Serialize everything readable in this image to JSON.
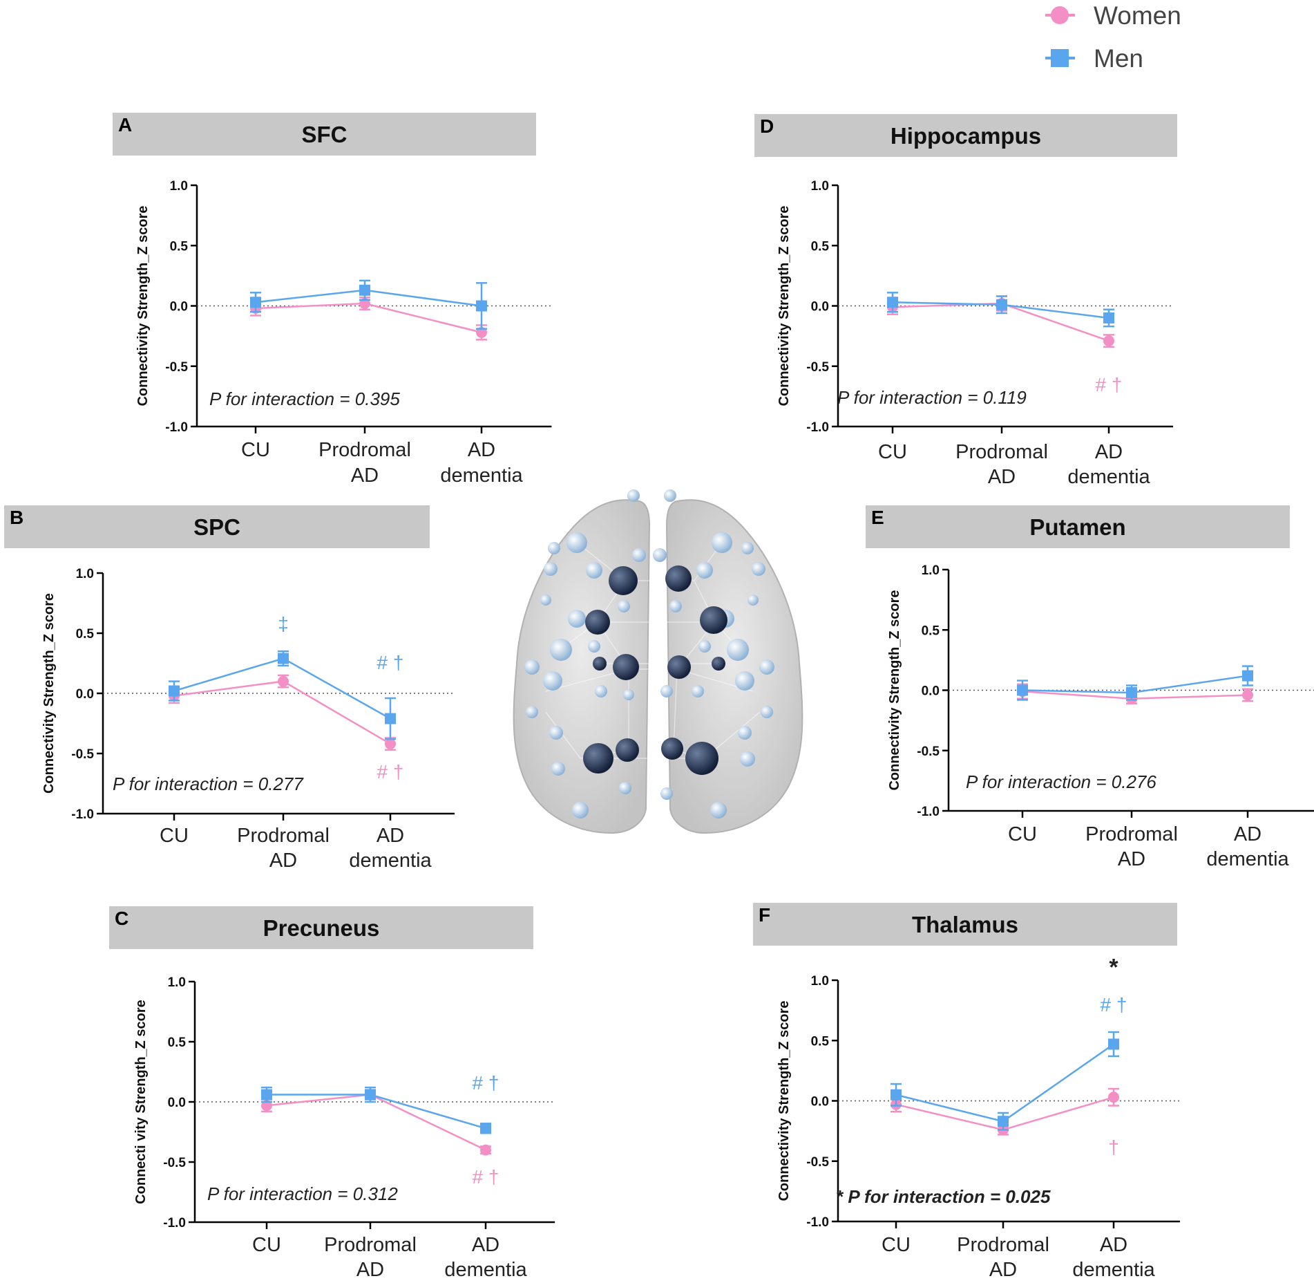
{
  "legend": {
    "position": "top-right",
    "entries": [
      {
        "label": "Women",
        "marker": "circle",
        "color": "#f48fc6"
      },
      {
        "label": "Men",
        "marker": "square",
        "color": "#5aa6ee"
      }
    ]
  },
  "colors": {
    "women": "#f48fc6",
    "men": "#5aa6ee",
    "header_bg": "#c8c8c8",
    "axis": "#000000",
    "star": "#222222"
  },
  "brain_image": {
    "icon": "brain-connectome-icon"
  },
  "chart_data": [
    {
      "panel": "A",
      "title": "SFC",
      "type": "line",
      "categories": [
        [
          "CU"
        ],
        [
          "Prodromal",
          "AD"
        ],
        [
          "AD",
          "dementia"
        ]
      ],
      "ylabel": "Connectivity Strength_Z score",
      "ylim": [
        -1.0,
        1.0
      ],
      "yticks": [
        "1.0",
        "0.5",
        "0.0",
        "-0.5",
        "-1.0"
      ],
      "series": [
        {
          "name": "Women",
          "values": [
            -0.02,
            0.02,
            -0.22
          ],
          "errors": [
            0.06,
            0.05,
            0.06
          ]
        },
        {
          "name": "Men",
          "values": [
            0.03,
            0.13,
            0.0
          ],
          "errors": [
            0.08,
            0.08,
            0.19
          ]
        }
      ],
      "p_text": "P for interaction = 0.395",
      "p_bold": false,
      "annotations": []
    },
    {
      "panel": "B",
      "title": "SPC",
      "type": "line",
      "categories": [
        [
          "CU"
        ],
        [
          "Prodromal",
          "AD"
        ],
        [
          "AD",
          "dementia"
        ]
      ],
      "ylabel": "Connectivity Strength_Z score",
      "ylim": [
        -1.0,
        1.0
      ],
      "yticks": [
        "1.0",
        "0.5",
        "0.0",
        "-0.5",
        "-1.0"
      ],
      "series": [
        {
          "name": "Women",
          "values": [
            -0.02,
            0.1,
            -0.42
          ],
          "errors": [
            0.06,
            0.05,
            0.05
          ]
        },
        {
          "name": "Men",
          "values": [
            0.02,
            0.29,
            -0.21
          ],
          "errors": [
            0.08,
            0.06,
            0.17
          ]
        }
      ],
      "p_text": "P for interaction = 0.277",
      "p_bold": false,
      "annotations": [
        {
          "text": "‡",
          "category": 1,
          "series": "Men",
          "y": 0.58
        },
        {
          "text": "# †",
          "category": 2,
          "series": "Men",
          "y": 0.26
        },
        {
          "text": "# †",
          "category": 2,
          "series": "Women",
          "y": -0.65
        }
      ]
    },
    {
      "panel": "C",
      "title": "Precuneus",
      "type": "line",
      "categories": [
        [
          "CU"
        ],
        [
          "Prodromal",
          "AD"
        ],
        [
          "AD",
          "dementia"
        ]
      ],
      "ylabel": "Connecti vity Strength_Z score",
      "ylim": [
        -1.0,
        1.0
      ],
      "yticks": [
        "1.0",
        "0.5",
        "0.0",
        "-0.5",
        "-1.0"
      ],
      "series": [
        {
          "name": "Women",
          "values": [
            -0.03,
            0.06,
            -0.4
          ],
          "errors": [
            0.05,
            0.04,
            0.03
          ]
        },
        {
          "name": "Men",
          "values": [
            0.06,
            0.06,
            -0.22
          ],
          "errors": [
            0.06,
            0.06,
            0.04
          ]
        }
      ],
      "p_text": "P for interaction = 0.312",
      "p_bold": false,
      "annotations": [
        {
          "text": "# †",
          "category": 2,
          "series": "Men",
          "y": 0.16
        },
        {
          "text": "# †",
          "category": 2,
          "series": "Women",
          "y": -0.62
        }
      ]
    },
    {
      "panel": "D",
      "title": "Hippocampus",
      "type": "line",
      "categories": [
        [
          "CU"
        ],
        [
          "Prodromal",
          "AD"
        ],
        [
          "AD",
          "dementia"
        ]
      ],
      "ylabel": "Connectivity Strength_Z score",
      "ylim": [
        -1.0,
        1.0
      ],
      "yticks": [
        "1.0",
        "0.5",
        "0.0",
        "-0.5",
        "-1.0"
      ],
      "series": [
        {
          "name": "Women",
          "values": [
            -0.01,
            0.02,
            -0.29
          ],
          "errors": [
            0.06,
            0.06,
            0.05
          ]
        },
        {
          "name": "Men",
          "values": [
            0.03,
            0.01,
            -0.1
          ],
          "errors": [
            0.08,
            0.07,
            0.07
          ]
        }
      ],
      "p_text": "P for interaction = 0.119",
      "p_bold": false,
      "annotations": [
        {
          "text": "# †",
          "category": 2,
          "series": "Women",
          "y": -0.65
        }
      ]
    },
    {
      "panel": "E",
      "title": "Putamen",
      "type": "line",
      "categories": [
        [
          "CU"
        ],
        [
          "Prodromal",
          "AD"
        ],
        [
          "AD",
          "dementia"
        ]
      ],
      "ylabel": "Connectivity Strength_Z score",
      "ylim": [
        -1.0,
        1.0
      ],
      "yticks": [
        "1.0",
        "0.5",
        "0.0",
        "-0.5",
        "-1.0"
      ],
      "series": [
        {
          "name": "Women",
          "values": [
            -0.01,
            -0.07,
            -0.04
          ],
          "errors": [
            0.06,
            0.04,
            0.05
          ]
        },
        {
          "name": "Men",
          "values": [
            0.0,
            -0.02,
            0.12
          ],
          "errors": [
            0.08,
            0.06,
            0.08
          ]
        }
      ],
      "p_text": "P for interaction = 0.276",
      "p_bold": false,
      "annotations": []
    },
    {
      "panel": "F",
      "title": "Thalamus",
      "type": "line",
      "categories": [
        [
          "CU"
        ],
        [
          "Prodromal",
          "AD"
        ],
        [
          "AD",
          "dementia"
        ]
      ],
      "ylabel": "Connectivity Strength_Z score",
      "ylim": [
        -1.0,
        1.0
      ],
      "yticks": [
        "1.0",
        "0.5",
        "0.0",
        "-0.5",
        "-1.0"
      ],
      "series": [
        {
          "name": "Women",
          "values": [
            -0.03,
            -0.24,
            0.03
          ],
          "errors": [
            0.06,
            0.04,
            0.07
          ]
        },
        {
          "name": "Men",
          "values": [
            0.05,
            -0.17,
            0.47
          ],
          "errors": [
            0.09,
            0.07,
            0.1
          ]
        }
      ],
      "p_text": "* P for interaction = 0.025",
      "p_bold": true,
      "annotations": [
        {
          "text": "*",
          "category": 2,
          "series": "Star",
          "y": 1.1
        },
        {
          "text": "# †",
          "category": 2,
          "series": "Men",
          "y": 0.8
        },
        {
          "text": "†",
          "category": 2,
          "series": "Women",
          "y": -0.38
        }
      ]
    }
  ]
}
